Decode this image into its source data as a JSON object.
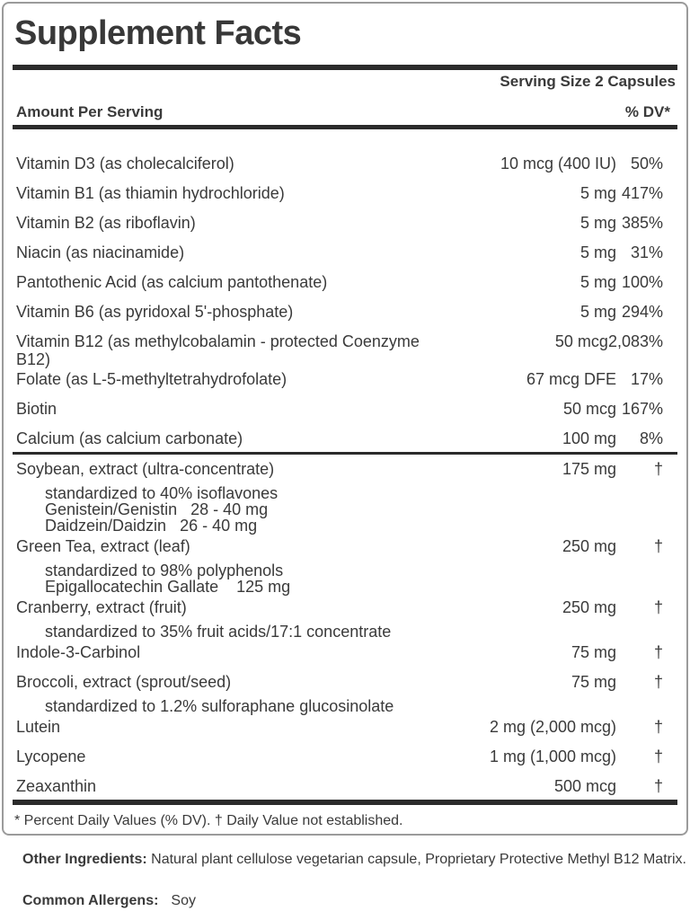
{
  "title": "Supplement Facts",
  "serving_size": "Serving Size 2 Capsules",
  "column_headers": {
    "left": "Amount Per Serving",
    "right": "% DV*"
  },
  "vitamin_rows": [
    {
      "name": "Vitamin D3 (as cholecalciferol)",
      "amount": "10 mcg (400 IU)",
      "dv": "50%"
    },
    {
      "name": "Vitamin B1 (as thiamin hydrochloride)",
      "amount": "5 mg",
      "dv": "417%"
    },
    {
      "name": "Vitamin B2 (as riboflavin)",
      "amount": "5 mg",
      "dv": "385%"
    },
    {
      "name": "Niacin (as niacinamide)",
      "amount": "5 mg",
      "dv": "31%"
    },
    {
      "name": "Pantothenic Acid (as calcium pantothenate)",
      "amount": "5 mg",
      "dv": "100%"
    },
    {
      "name": "Vitamin B6 (as pyridoxal 5'-phosphate)",
      "amount": "5 mg",
      "dv": "294%"
    },
    {
      "name": "Vitamin B12 (as methylcobalamin - protected Coenzyme\nB12)",
      "amount": "50 mcg",
      "dv": "2,083%"
    },
    {
      "name": "Folate (as L-5-methyltetrahydrofolate)",
      "amount": "67 mcg DFE",
      "dv": "17%"
    },
    {
      "name": "Biotin",
      "amount": "50 mcg",
      "dv": "167%"
    },
    {
      "name": "Calcium (as calcium carbonate)",
      "amount": "100 mg",
      "dv": "8%"
    }
  ],
  "herb_rows": [
    {
      "name": "Soybean, extract (ultra-concentrate)",
      "amount": "175 mg",
      "dv": "†",
      "subs": [
        "standardized to 40% isoflavones",
        "Genistein/Genistin   28 - 40 mg",
        "Daidzein/Daidzin   26 - 40 mg"
      ]
    },
    {
      "name": "Green Tea, extract (leaf)",
      "amount": "250 mg",
      "dv": "†",
      "subs": [
        "standardized to 98% polyphenols",
        "Epigallocatechin Gallate    125 mg"
      ]
    },
    {
      "name": "Cranberry, extract (fruit)",
      "amount": "250 mg",
      "dv": "†",
      "subs": [
        "standardized to 35% fruit acids/17:1 concentrate"
      ]
    },
    {
      "name": "Indole-3-Carbinol",
      "amount": "75 mg",
      "dv": "†"
    },
    {
      "name": "Broccoli, extract (sprout/seed)",
      "amount": "75 mg",
      "dv": "†",
      "subs": [
        "standardized to 1.2% sulforaphane glucosinolate"
      ]
    },
    {
      "name": "Lutein",
      "amount": "2 mg (2,000 mcg)",
      "dv": "†"
    },
    {
      "name": "Lycopene",
      "amount": "1 mg (1,000 mcg)",
      "dv": "†"
    },
    {
      "name": "Zeaxanthin",
      "amount": "500 mcg",
      "dv": "†"
    }
  ],
  "footnote": "* Percent Daily Values (% DV). † Daily Value not established.",
  "other_ingredients": {
    "label": "Other Ingredients:",
    "text": " Natural plant cellulose vegetarian capsule, Proprietary Protective Methyl B12 Matrix."
  },
  "allergens": {
    "label": "Common Allergens:",
    "value": "Soy"
  },
  "colors": {
    "text": "#3a3a3a",
    "bar": "#2b2b2b",
    "border": "#9b9b9b",
    "background": "#ffffff"
  }
}
